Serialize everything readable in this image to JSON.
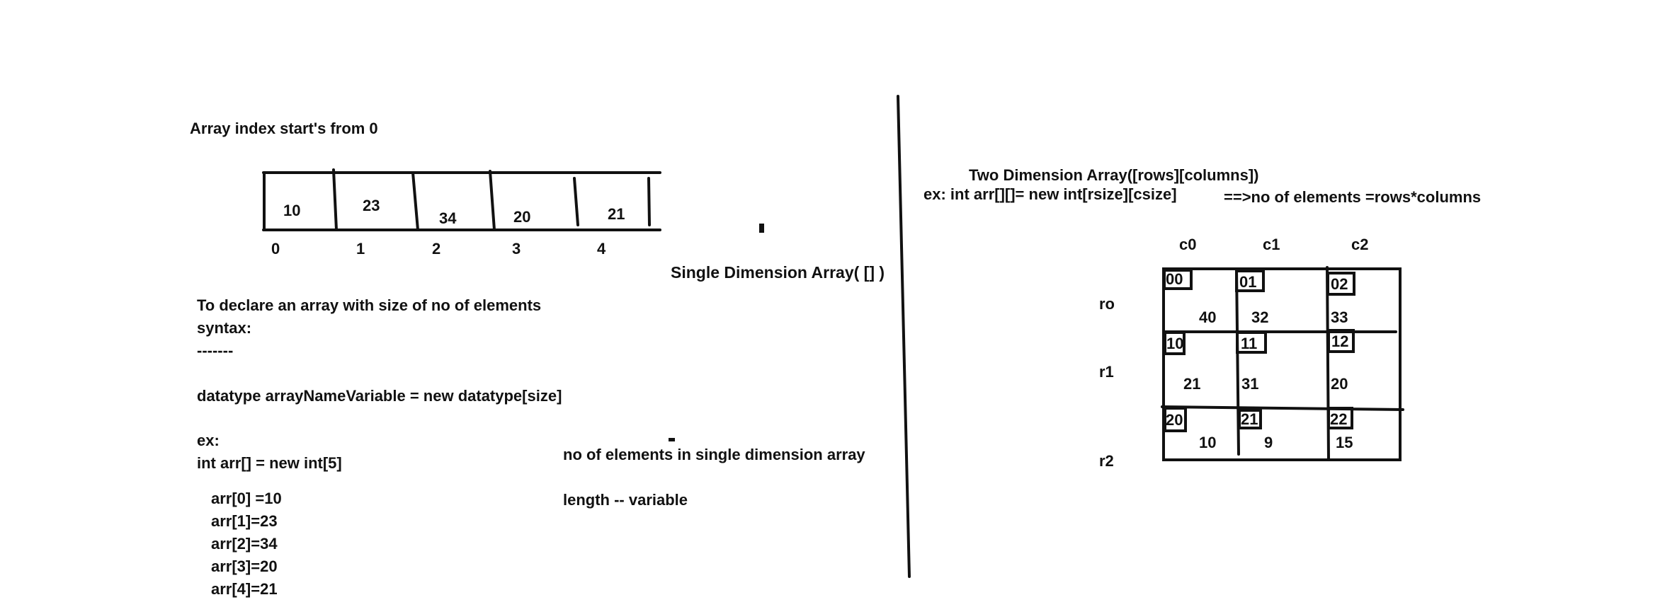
{
  "left": {
    "heading": "Array index start's from 0",
    "array_values": [
      "10",
      "23",
      "34",
      "20",
      "21"
    ],
    "array_indexes": [
      "0",
      "1",
      "2",
      "3",
      "4"
    ],
    "single_dim_title": "Single Dimension Array( [] )",
    "declare_line": "To declare an array with size of no of elements",
    "syntax_label": "syntax:",
    "dashes": "-------",
    "syntax_line": "datatype arrayNameVariable = new datatype[size]",
    "ex_label": "ex:",
    "ex_code": "int  arr[] = new int[5]",
    "assignments": [
      "arr[0] =10",
      "arr[1]=23",
      "arr[2]=34",
      "arr[3]=20",
      "arr[4]=21"
    ],
    "no_of_elements_note": "no of elements in single dimension array",
    "length_note": "length -- variable"
  },
  "right": {
    "title": "Two Dimension Array([rows][columns])",
    "ex_line": "ex: int arr[][]= new int[rsize][csize]",
    "formula": "==>no  of elements =rows*columns",
    "col_headers": [
      "c0",
      "c1",
      "c2"
    ],
    "row_headers": [
      "ro",
      "r1",
      "r2"
    ],
    "grid": [
      [
        {
          "index": "00",
          "value": "40"
        },
        {
          "index": "01",
          "value": "32"
        },
        {
          "index": "02",
          "value": "33"
        }
      ],
      [
        {
          "index": "10",
          "value": "21"
        },
        {
          "index": "11",
          "value": "31"
        },
        {
          "index": "12",
          "value": "20"
        }
      ],
      [
        {
          "index": "20",
          "value": "10"
        },
        {
          "index": "21",
          "value": "9"
        },
        {
          "index": "22",
          "value": "15"
        }
      ]
    ]
  }
}
